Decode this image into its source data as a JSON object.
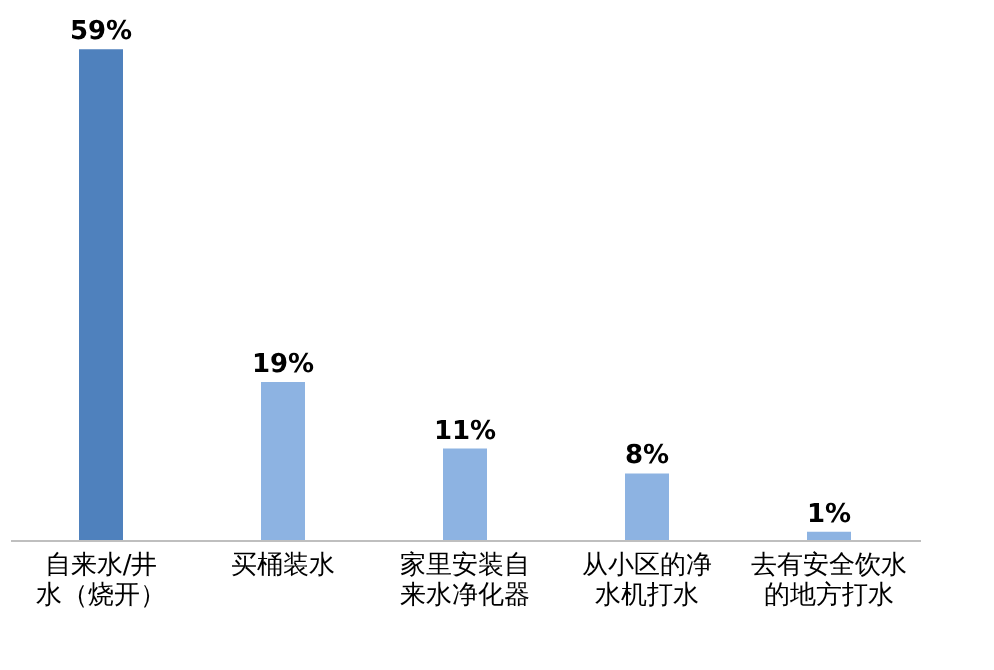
{
  "chart_data": {
    "type": "bar",
    "categories": [
      "自来水/井水（烧开）",
      "买桶装水",
      "家里安装自来水净化器",
      "从小区的净水机打水",
      "去有安全饮水的地方打水"
    ],
    "values": [
      59,
      19,
      11,
      8,
      1
    ],
    "colors": [
      "#4f81bd",
      "#8db3e2",
      "#8db3e2",
      "#8db3e2",
      "#8db3e2"
    ],
    "value_labels": [
      "59%",
      "19%",
      "11%",
      "8%",
      "1%"
    ]
  }
}
